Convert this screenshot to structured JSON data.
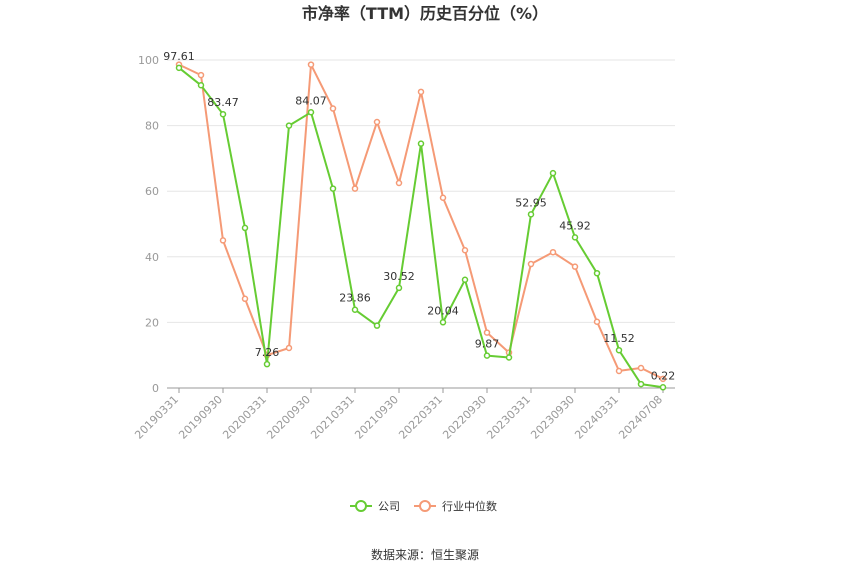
{
  "title": "市净率（TTM）历史百分位（%）",
  "source": "数据来源：恒生聚源",
  "colors": {
    "company": "#66cc33",
    "industry": "#f59a76",
    "grid": "#e6e6e6",
    "axis": "#999999"
  },
  "chart_data": {
    "type": "line",
    "title": "市净率（TTM）历史百分位（%）",
    "ylim": [
      0,
      100
    ],
    "y_ticks": [
      "0",
      "20",
      "40",
      "60",
      "80",
      "100"
    ],
    "x_tick_labels": [
      "20190331",
      "20190930",
      "20200331",
      "20200930",
      "20210331",
      "20210930",
      "20220331",
      "20220930",
      "20230331",
      "20230930",
      "20240331",
      "20240708"
    ],
    "x": [
      "20190331",
      "20190630",
      "20190930",
      "20191231",
      "20200331",
      "20200630",
      "20200930",
      "20201231",
      "20210331",
      "20210630",
      "20210930",
      "20211231",
      "20220331",
      "20220630",
      "20220930",
      "20221231",
      "20230331",
      "20230630",
      "20230930",
      "20231231",
      "20240331",
      "20240630",
      "20240708"
    ],
    "legend": "bottom",
    "grid": true,
    "series": [
      {
        "name": "公司",
        "values": [
          97.61,
          92.3,
          83.47,
          48.8,
          7.26,
          80.0,
          84.07,
          60.8,
          23.86,
          19.0,
          30.52,
          74.5,
          20.04,
          33.0,
          9.87,
          9.3,
          52.95,
          65.5,
          45.92,
          35.0,
          11.52,
          1.2,
          0.22
        ]
      },
      {
        "name": "行业中位数",
        "values": [
          98.6,
          95.4,
          45.0,
          27.2,
          10.0,
          12.2,
          98.6,
          85.2,
          60.8,
          81.1,
          62.5,
          90.3,
          58.0,
          42.0,
          16.9,
          10.8,
          37.8,
          41.4,
          37.0,
          20.2,
          5.2,
          6.1,
          2.8
        ]
      }
    ],
    "data_labels": [
      {
        "series": 0,
        "index": 0,
        "text": "97.61"
      },
      {
        "series": 0,
        "index": 2,
        "text": "83.47"
      },
      {
        "series": 0,
        "index": 4,
        "text": "7.26"
      },
      {
        "series": 0,
        "index": 6,
        "text": "84.07"
      },
      {
        "series": 0,
        "index": 8,
        "text": "23.86"
      },
      {
        "series": 0,
        "index": 10,
        "text": "30.52"
      },
      {
        "series": 0,
        "index": 12,
        "text": "20.04"
      },
      {
        "series": 0,
        "index": 14,
        "text": "9.87"
      },
      {
        "series": 0,
        "index": 16,
        "text": "52.95"
      },
      {
        "series": 0,
        "index": 18,
        "text": "45.92"
      },
      {
        "series": 0,
        "index": 20,
        "text": "11.52"
      },
      {
        "series": 0,
        "index": 22,
        "text": "0.22"
      }
    ]
  }
}
